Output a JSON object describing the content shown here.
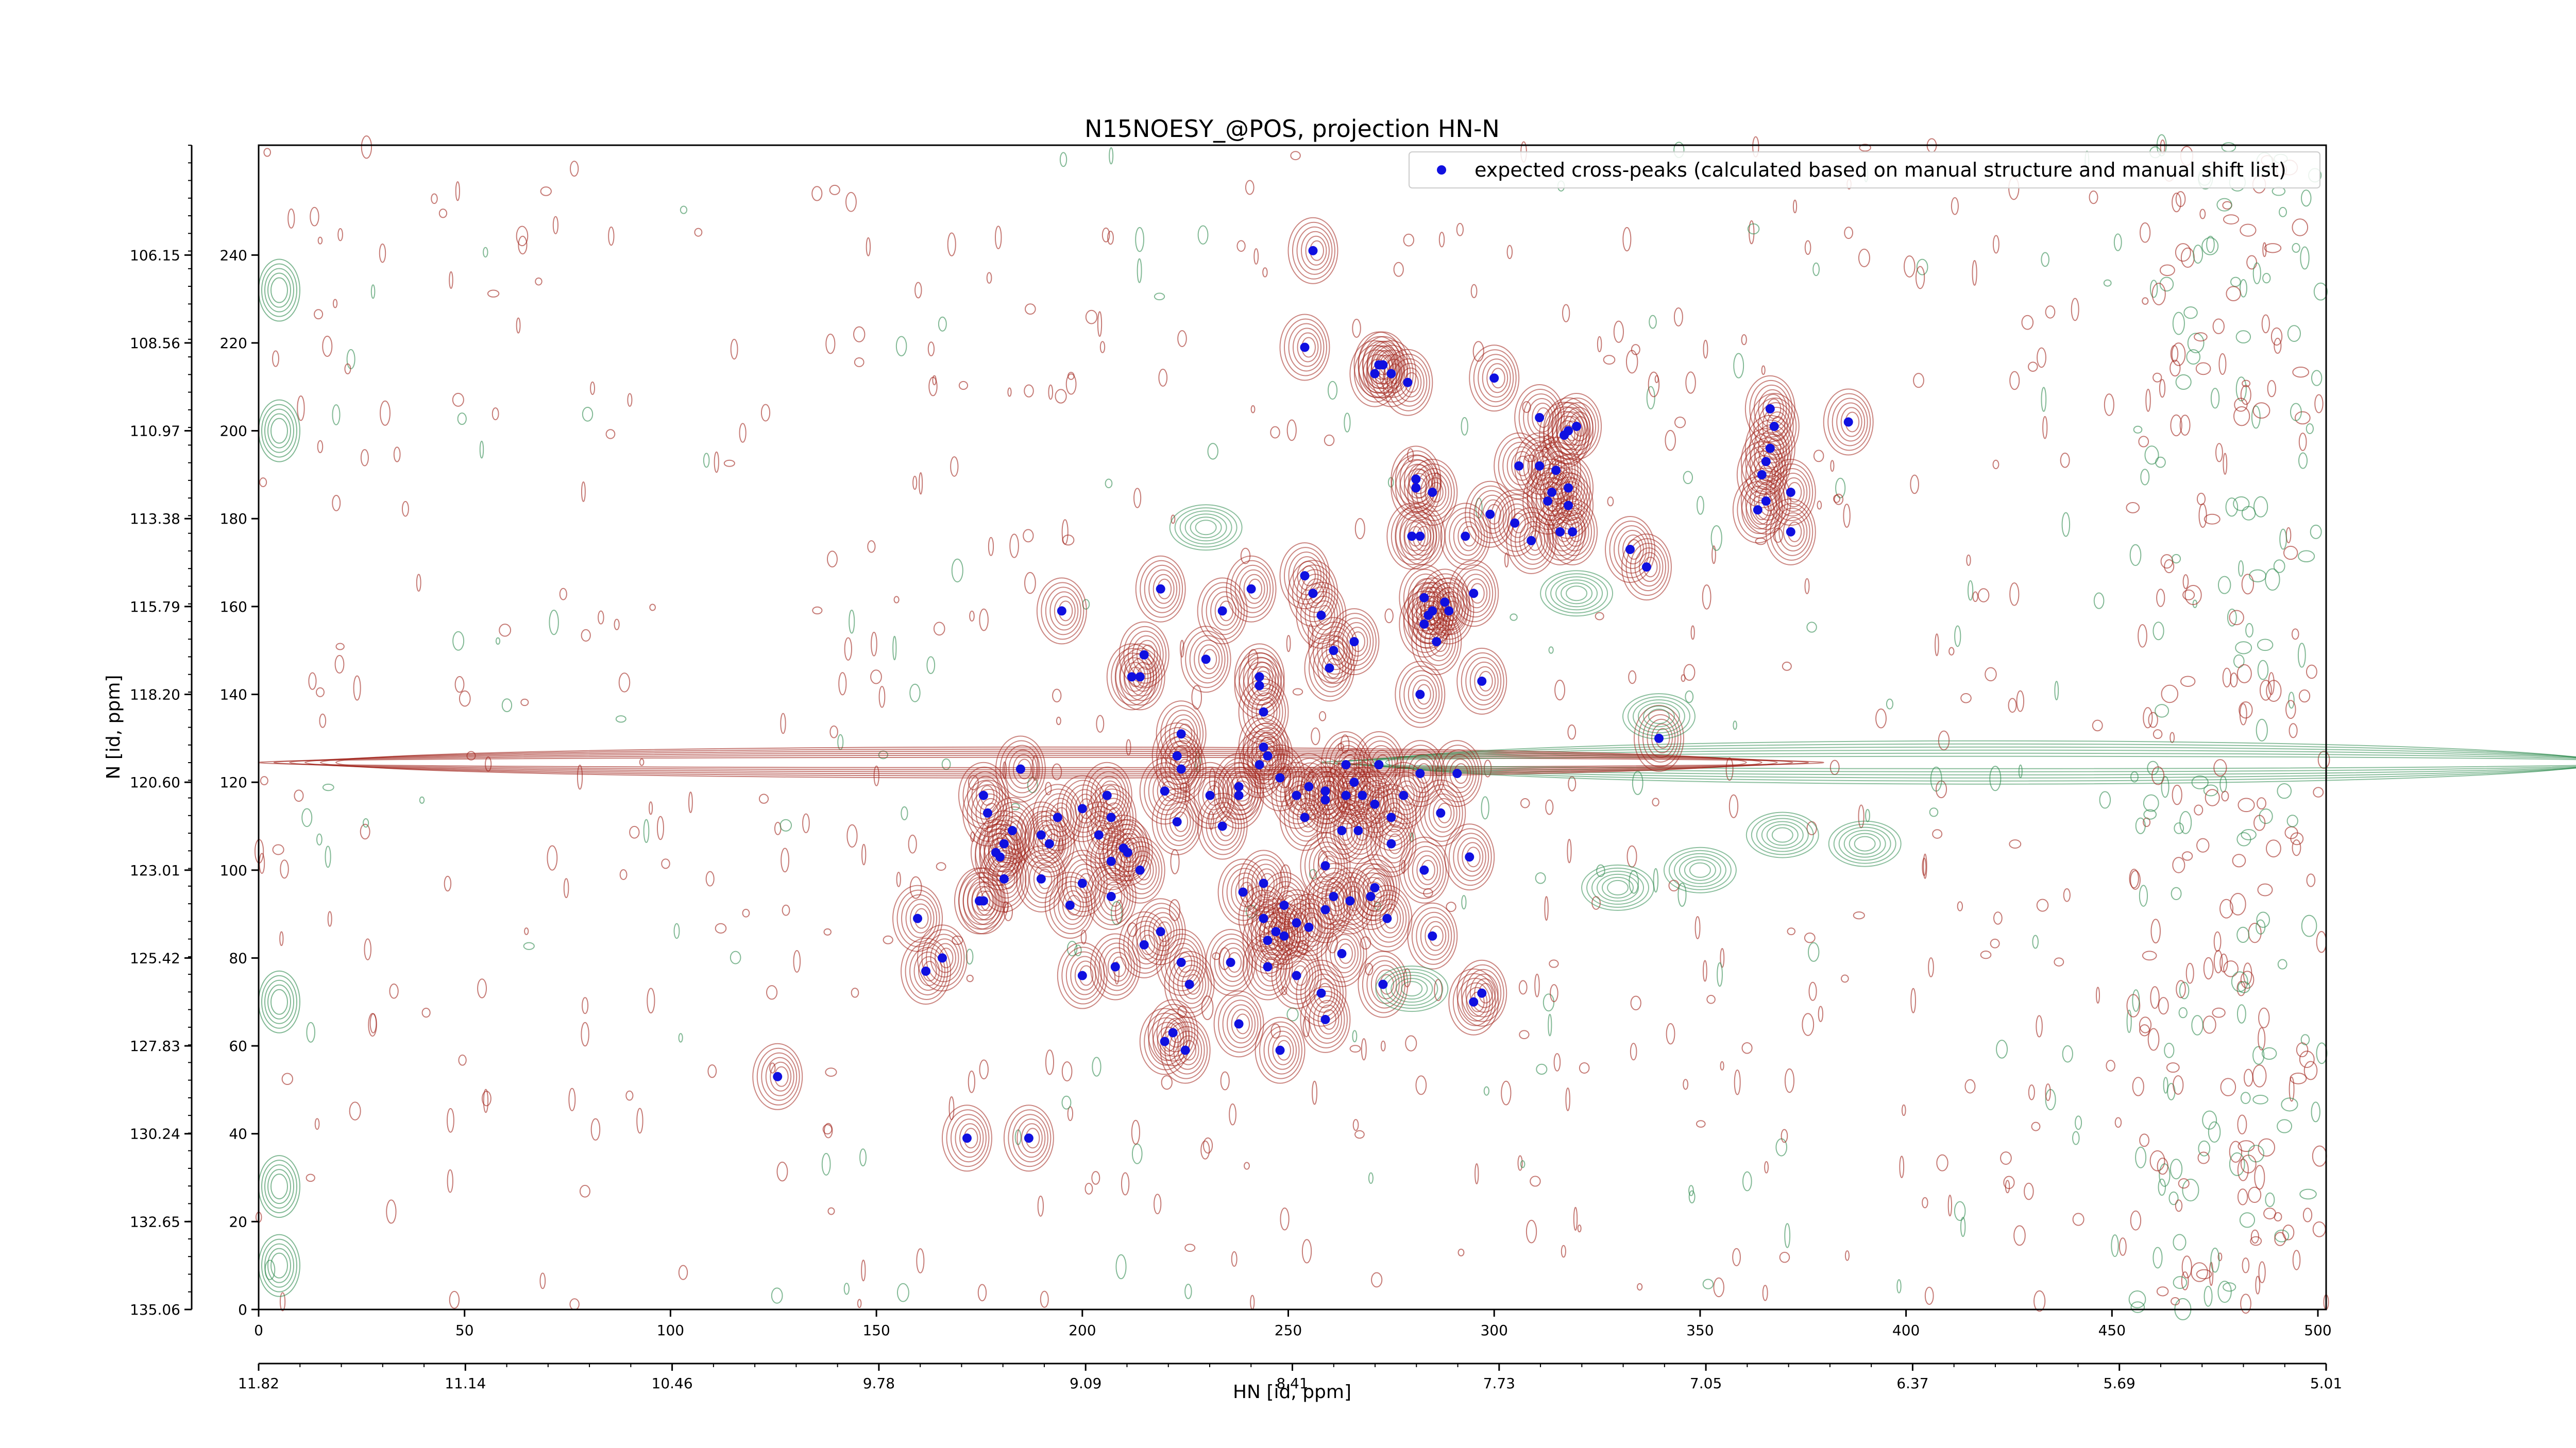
{
  "chart_data": {
    "type": "scatter",
    "title": "N15NOESY_@POS, projection HN-N",
    "xlabel": "HN [id, ppm]",
    "ylabel": "N [id, ppm]",
    "xlim": [
      0,
      502
    ],
    "ylim": [
      0,
      265
    ],
    "x_ticks": [
      0,
      50,
      100,
      150,
      200,
      250,
      300,
      350,
      400,
      450,
      500
    ],
    "y_ticks": [
      0,
      20,
      40,
      60,
      80,
      100,
      120,
      140,
      160,
      180,
      200,
      220,
      240
    ],
    "x_ppm_tick_labels": [
      "11.82",
      "11.14",
      "10.46",
      "9.78",
      "9.09",
      "8.41",
      "7.73",
      "7.05",
      "6.37",
      "5.69",
      "5.01"
    ],
    "y_ppm_tick_labels": [
      "135.06",
      "132.65",
      "130.24",
      "127.83",
      "125.42",
      "123.01",
      "120.60",
      "118.20",
      "115.79",
      "113.38",
      "110.97",
      "108.56",
      "106.15"
    ],
    "legend": {
      "position": "top-right",
      "label": "expected cross-peaks (calculated based on manual structure and manual shift list)"
    },
    "colors": {
      "positive_contour": "#a0231a",
      "negative_contour": "#2e8b4f",
      "marker": "#1010e0"
    },
    "series": [
      {
        "name": "expected cross-peaks (calculated based on manual structure and manual shift list)",
        "points": [
          [
            256,
            241
          ],
          [
            254,
            219
          ],
          [
            273,
            215
          ],
          [
            272,
            215
          ],
          [
            271,
            213
          ],
          [
            275,
            213
          ],
          [
            279,
            211
          ],
          [
            300,
            212
          ],
          [
            320,
            201
          ],
          [
            318,
            200
          ],
          [
            317,
            199
          ],
          [
            311,
            203
          ],
          [
            306,
            192
          ],
          [
            311,
            192
          ],
          [
            315,
            191
          ],
          [
            314,
            186
          ],
          [
            318,
            183
          ],
          [
            318,
            187
          ],
          [
            313,
            184
          ],
          [
            299,
            181
          ],
          [
            305,
            179
          ],
          [
            309,
            175
          ],
          [
            293,
            176
          ],
          [
            281,
            187
          ],
          [
            285,
            186
          ],
          [
            281,
            189
          ],
          [
            280,
            176
          ],
          [
            282,
            176
          ],
          [
            316,
            177
          ],
          [
            319,
            177
          ],
          [
            333,
            173
          ],
          [
            337,
            169
          ],
          [
            367,
            205
          ],
          [
            368,
            201
          ],
          [
            367,
            196
          ],
          [
            366,
            193
          ],
          [
            365,
            190
          ],
          [
            366,
            184
          ],
          [
            364,
            182
          ],
          [
            372,
            186
          ],
          [
            372,
            177
          ],
          [
            386,
            202
          ],
          [
            254,
            167
          ],
          [
            256,
            163
          ],
          [
            241,
            164
          ],
          [
            219,
            164
          ],
          [
            195,
            159
          ],
          [
            258,
            158
          ],
          [
            261,
            150
          ],
          [
            266,
            152
          ],
          [
            260,
            146
          ],
          [
            283,
            156
          ],
          [
            283,
            162
          ],
          [
            285,
            159
          ],
          [
            289,
            159
          ],
          [
            288,
            161
          ],
          [
            284,
            158
          ],
          [
            286,
            152
          ],
          [
            295,
            163
          ],
          [
            234,
            159
          ],
          [
            230,
            148
          ],
          [
            215,
            149
          ],
          [
            214,
            144
          ],
          [
            212,
            144
          ],
          [
            243,
            144
          ],
          [
            243,
            142
          ],
          [
            244,
            136
          ],
          [
            244,
            128
          ],
          [
            245,
            126
          ],
          [
            243,
            124
          ],
          [
            248,
            121
          ],
          [
            252,
            117
          ],
          [
            264,
            124
          ],
          [
            272,
            124
          ],
          [
            266,
            120
          ],
          [
            278,
            117
          ],
          [
            282,
            140
          ],
          [
            297,
            143
          ],
          [
            340,
            130
          ],
          [
            224,
            131
          ],
          [
            223,
            126
          ],
          [
            224,
            123
          ],
          [
            220,
            118
          ],
          [
            238,
            119
          ],
          [
            231,
            117
          ],
          [
            238,
            117
          ],
          [
            223,
            111
          ],
          [
            234,
            110
          ],
          [
            254,
            112
          ],
          [
            255,
            119
          ],
          [
            259,
            118
          ],
          [
            259,
            116
          ],
          [
            268,
            117
          ],
          [
            271,
            115
          ],
          [
            267,
            109
          ],
          [
            263,
            109
          ],
          [
            264,
            117
          ],
          [
            282,
            122
          ],
          [
            291,
            122
          ],
          [
            287,
            113
          ],
          [
            275,
            112
          ],
          [
            275,
            106
          ],
          [
            294,
            103
          ],
          [
            259,
            101
          ],
          [
            261,
            94
          ],
          [
            244,
            97
          ],
          [
            239,
            95
          ],
          [
            249,
            92
          ],
          [
            244,
            89
          ],
          [
            252,
            88
          ],
          [
            245,
            84
          ],
          [
            249,
            85
          ],
          [
            255,
            87
          ],
          [
            259,
            91
          ],
          [
            265,
            93
          ],
          [
            274,
            89
          ],
          [
            270,
            94
          ],
          [
            283,
            100
          ],
          [
            271,
            96
          ],
          [
            185,
            123
          ],
          [
            176,
            117
          ],
          [
            177,
            113
          ],
          [
            181,
            106
          ],
          [
            183,
            109
          ],
          [
            179,
            104
          ],
          [
            192,
            106
          ],
          [
            194,
            112
          ],
          [
            190,
            108
          ],
          [
            200,
            114
          ],
          [
            206,
            117
          ],
          [
            207,
            112
          ],
          [
            204,
            108
          ],
          [
            211,
            104
          ],
          [
            207,
            102
          ],
          [
            200,
            97
          ],
          [
            207,
            94
          ],
          [
            210,
            105
          ],
          [
            181,
            98
          ],
          [
            190,
            98
          ],
          [
            180,
            103
          ],
          [
            197,
            92
          ],
          [
            214,
            100
          ],
          [
            175,
            93
          ],
          [
            160,
            89
          ],
          [
            176,
            93
          ],
          [
            162,
            77
          ],
          [
            166,
            80
          ],
          [
            200,
            76
          ],
          [
            208,
            78
          ],
          [
            219,
            86
          ],
          [
            215,
            83
          ],
          [
            224,
            79
          ],
          [
            226,
            74
          ],
          [
            236,
            79
          ],
          [
            245,
            78
          ],
          [
            247,
            86
          ],
          [
            252,
            76
          ],
          [
            258,
            72
          ],
          [
            263,
            81
          ],
          [
            295,
            70
          ],
          [
            297,
            72
          ],
          [
            273,
            74
          ],
          [
            285,
            85
          ],
          [
            259,
            66
          ],
          [
            238,
            65
          ],
          [
            222,
            63
          ],
          [
            220,
            61
          ],
          [
            225,
            59
          ],
          [
            248,
            59
          ],
          [
            126,
            53
          ],
          [
            172,
            39
          ],
          [
            187,
            39
          ]
        ]
      }
    ]
  }
}
